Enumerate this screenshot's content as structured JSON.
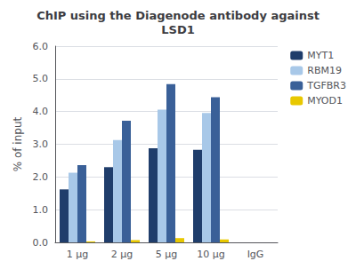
{
  "chart_data": {
    "type": "bar",
    "title": "ChIP using the Diagenode antibody against\nLSD1",
    "ylabel": "% of input",
    "categories": [
      "1 μg",
      "2 μg",
      "5 μg",
      "10 μg",
      "IgG"
    ],
    "series": [
      {
        "name": "MYT1",
        "color": "#1F3D6B",
        "values": [
          1.62,
          2.3,
          2.88,
          2.83,
          0.0
        ]
      },
      {
        "name": "RBM19",
        "color": "#A8C8E8",
        "values": [
          2.13,
          3.13,
          4.06,
          3.96,
          0.0
        ]
      },
      {
        "name": "TGFBR3",
        "color": "#3A6098",
        "values": [
          2.36,
          3.72,
          4.84,
          4.44,
          0.0
        ]
      },
      {
        "name": "MYOD1",
        "color": "#E8C800",
        "values": [
          0.03,
          0.07,
          0.13,
          0.09,
          0.0
        ]
      }
    ],
    "ylim": [
      0.0,
      6.0
    ],
    "yticks": [
      {
        "value": 0.0,
        "label": "0.0"
      },
      {
        "value": 1.0,
        "label": "1.0"
      },
      {
        "value": 2.0,
        "label": "2.0"
      },
      {
        "value": 3.0,
        "label": "3.0"
      },
      {
        "value": 4.0,
        "label": "4.0"
      },
      {
        "value": 5.0,
        "label": "5.0"
      },
      {
        "value": 6.0,
        "label": "6.0"
      }
    ],
    "grid": true,
    "legend": "upper right"
  }
}
